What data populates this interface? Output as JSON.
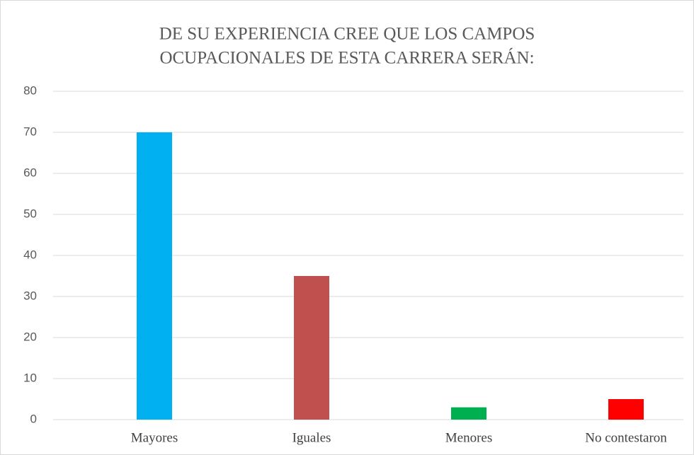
{
  "chart_data": {
    "type": "bar",
    "title": [
      "DE SU EXPERIENCIA CREE QUE LOS CAMPOS",
      "OCUPACIONALES DE ESTA CARRERA SERÁN:"
    ],
    "categories": [
      "Mayores",
      "Iguales",
      "Menores",
      "No contestaron"
    ],
    "values": [
      70,
      35,
      3,
      5
    ],
    "colors": [
      "#00b0f0",
      "#c0504d",
      "#00b050",
      "#ff0000"
    ],
    "ylim": [
      0,
      80
    ],
    "yticks": [
      0,
      10,
      20,
      30,
      40,
      50,
      60,
      70,
      80
    ],
    "grid": true
  }
}
